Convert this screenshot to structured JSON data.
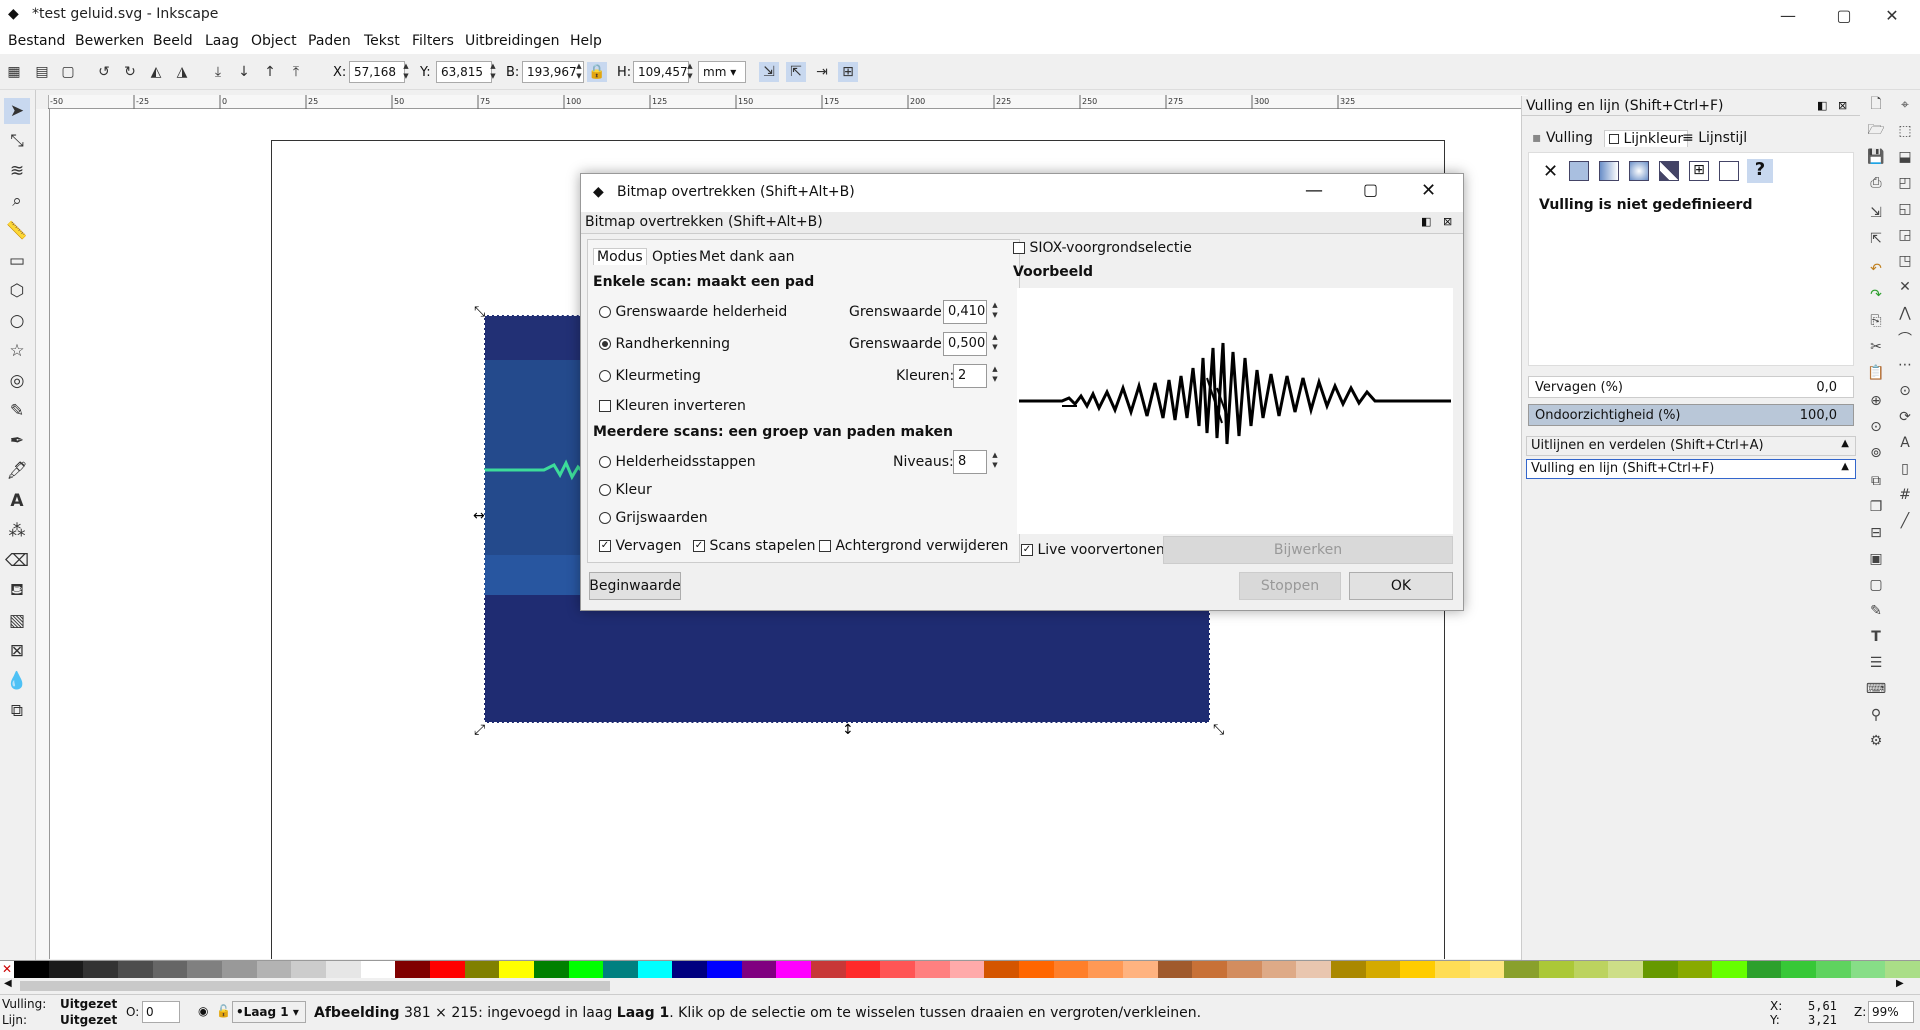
{
  "window": {
    "title": "*test geluid.svg - Inkscape",
    "min": "—",
    "max": "▢",
    "close": "✕"
  },
  "menu": [
    "Bestand",
    "Bewerken",
    "Beeld",
    "Laag",
    "Object",
    "Paden",
    "Tekst",
    "Filters",
    "Uitbreidingen",
    "Help"
  ],
  "toolbar": {
    "x_label": "X:",
    "x_value": "57,168",
    "y_label": "Y:",
    "y_value": "63,815",
    "w_label": "B:",
    "w_value": "193,967",
    "h_label": "H:",
    "h_value": "109,457",
    "unit": "mm"
  },
  "ruler_labels": [
    "-50",
    "-25",
    "0",
    "25",
    "50",
    "75",
    "100",
    "125",
    "150",
    "175",
    "200",
    "225",
    "250",
    "275",
    "300",
    "325"
  ],
  "dialog": {
    "title": "Bitmap overtrekken (Shift+Alt+B)",
    "subtitle": "Bitmap overtrekken (Shift+Alt+B)",
    "tabs": [
      "Modus",
      "Opties",
      "Met dank aan"
    ],
    "single_scan_header": "Enkele scan: maakt een pad",
    "opt_brightness": "Grenswaarde helderheid",
    "opt_edge": "Randherkenning",
    "opt_color": "Kleurmeting",
    "threshold_label": "Grenswaarde:",
    "threshold_brightness": "0,410",
    "threshold_edge": "0,500",
    "colors_label": "Kleuren:",
    "colors_value": "2",
    "invert_label": "Kleuren inverteren",
    "multi_scan_header": "Meerdere scans: een groep van paden maken",
    "opt_steps": "Helderheidsstappen",
    "levels_label": "Niveaus:",
    "levels_value": "8",
    "opt_colour": "Kleur",
    "opt_gray": "Grijswaarden",
    "smooth_label": "Vervagen",
    "stack_label": "Scans stapelen",
    "remove_bg_label": "Achtergrond verwijderen",
    "siox_label": "SIOX-voorgrondselectie",
    "preview_header": "Voorbeeld",
    "live_preview_label": "Live voorvertonen",
    "update_button": "Bijwerken",
    "reset_button": "Beginwaarde",
    "stop_button": "Stoppen",
    "ok_button": "OK"
  },
  "fillstroke": {
    "title": "Vulling en lijn (Shift+Ctrl+F)",
    "tab_fill": "Vulling",
    "tab_stroke_paint": "Lijnkleur",
    "tab_stroke_style": "Lijnstijl",
    "no_fill": "Vulling is niet gedefinieerd",
    "blur_label": "Vervagen (%)",
    "blur_value": "0,0",
    "opacity_label": "Ondoorzichtigheid (%)",
    "opacity_value": "100,0",
    "align_panel": "Uitlijnen en verdelen (Shift+Ctrl+A)",
    "fillstroke_panel": "Vulling en lijn (Shift+Ctrl+F)"
  },
  "status": {
    "fill_label": "Vulling:",
    "fill_value": "Uitgezet",
    "stroke_label": "Lijn:",
    "stroke_value": "Uitgezet",
    "opacity_label": "O:",
    "opacity_value": "0",
    "layer": "•Laag 1",
    "message_bold": "Afbeelding",
    "message_rest": " 381 × 215: ingevoegd in laag ",
    "message_layer": "Laag 1",
    "message_end": ". Klik op de selectie om te wisselen tussen draaien en vergroten/verkleinen.",
    "x_label": "X:",
    "x_value": "5,61",
    "y_label": "Y:",
    "y_value": "3,21",
    "zoom_label": "Z:",
    "zoom_value": "99%"
  },
  "palette_colors": [
    "#000000",
    "#1a1a1a",
    "#333333",
    "#4d4d4d",
    "#666666",
    "#808080",
    "#999999",
    "#b3b3b3",
    "#cccccc",
    "#e6e6e6",
    "#ffffff",
    "#800000",
    "#ff0000",
    "#808000",
    "#ffff00",
    "#008000",
    "#00ff00",
    "#008080",
    "#00ffff",
    "#000080",
    "#0000ff",
    "#800080",
    "#ff00ff",
    "#c83737",
    "#ff2a2a",
    "#ff5555",
    "#ff8080",
    "#ffaaaa",
    "#d45500",
    "#ff6600",
    "#ff7f2a",
    "#ff9955",
    "#ffb380",
    "#a05a2c",
    "#c87137",
    "#d38d5f",
    "#deaa87",
    "#e9c6af",
    "#aa8800",
    "#d4aa00",
    "#ffcc00",
    "#ffdd55",
    "#ffe680",
    "#89a02c",
    "#abc837",
    "#bcd35f",
    "#cdde87",
    "#669900",
    "#88aa00",
    "#66ff00",
    "#2ca02c",
    "#37c837",
    "#5fd35f",
    "#87de87",
    "#aade87"
  ]
}
